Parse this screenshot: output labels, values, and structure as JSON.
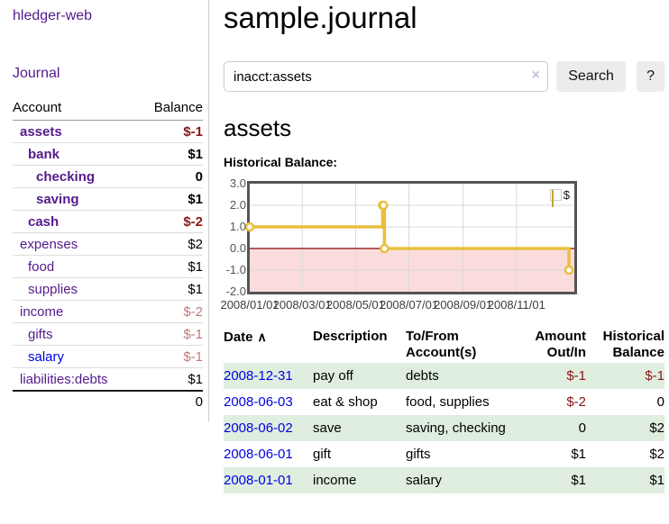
{
  "colors": {
    "link_purple": "#551a8b",
    "link_blue": "#0000e8",
    "negative_dark": "#8b1515",
    "negative_light": "#bd7b7b",
    "row_green": "#dfeedf",
    "row_border": "#dddddd",
    "header_underline": "#999999",
    "divider": "#cccccc",
    "input_border": "#cccccc",
    "button_bg": "#ececec",
    "clear_icon": "#c6c1dc",
    "chart_gold": "#e9bf3e",
    "chart_pink": "#fbdcdc",
    "chart_zero": "#8b0000",
    "chart_border": "#545454",
    "chart_grid": "#d8d8d8",
    "axis_label": "#545454"
  },
  "sidebar": {
    "app_title": "hledger-web",
    "journal_label": "Journal",
    "accounts": {
      "headers": {
        "account": "Account",
        "balance": "Balance"
      },
      "rows": [
        {
          "name": "assets",
          "balance": "$-1",
          "depth": 1,
          "bold": true,
          "negative": true
        },
        {
          "name": "bank",
          "balance": "$1",
          "depth": 2,
          "bold": true
        },
        {
          "name": "checking",
          "balance": "0",
          "depth": 3,
          "bold": true
        },
        {
          "name": "saving",
          "balance": "$1",
          "depth": 3,
          "bold": true
        },
        {
          "name": "cash",
          "balance": "$-2",
          "depth": 2,
          "bold": true,
          "negative": true
        },
        {
          "name": "expenses",
          "balance": "$2",
          "depth": 1
        },
        {
          "name": "food",
          "balance": "$1",
          "depth": 2
        },
        {
          "name": "supplies",
          "balance": "$1",
          "depth": 2
        },
        {
          "name": "income",
          "balance": "$-2",
          "depth": 1,
          "negative": true,
          "light": true
        },
        {
          "name": "gifts",
          "balance": "$-1",
          "depth": 2,
          "negative": true,
          "light": true
        },
        {
          "name": "salary",
          "balance": "$-1",
          "depth": 2,
          "negative": true,
          "light": true,
          "unvisited": true
        },
        {
          "name": "liabilities:debts",
          "balance": "$1",
          "depth": 1
        }
      ],
      "total": "0"
    }
  },
  "header": {
    "title": "sample.journal"
  },
  "search": {
    "query": "inacct:assets",
    "clear_icon": "×",
    "button_label": "Search",
    "help_label": "?"
  },
  "account_page": {
    "heading": "assets"
  },
  "chart_data": {
    "type": "line",
    "steps": true,
    "title": "Historical Balance:",
    "series": [
      {
        "name": "$",
        "points": [
          [
            "2008-01-01",
            1
          ],
          [
            "2008-06-01",
            2
          ],
          [
            "2008-06-02",
            2
          ],
          [
            "2008-06-03",
            0
          ],
          [
            "2008-12-31",
            -1
          ]
        ]
      }
    ],
    "x_range": [
      "2008-01-01",
      "2008-12-31"
    ],
    "x_ticks": [
      {
        "date": "2008-01-01",
        "label": "2008/01/01"
      },
      {
        "date": "2008-03-01",
        "label": "2008/03/01"
      },
      {
        "date": "2008-05-01",
        "label": "2008/05/01"
      },
      {
        "date": "2008-07-01",
        "label": "2008/07/01"
      },
      {
        "date": "2008-09-01",
        "label": "2008/09/01"
      },
      {
        "date": "2008-11-01",
        "label": "2008/11/01"
      }
    ],
    "y_ticks": [
      {
        "value": 3,
        "label": "3.0"
      },
      {
        "value": 2,
        "label": "2.0"
      },
      {
        "value": 1,
        "label": "1.0"
      },
      {
        "value": 0,
        "label": "0.0"
      },
      {
        "value": -1,
        "label": "-1.0"
      },
      {
        "value": -2,
        "label": "-2.0"
      }
    ],
    "ylim": [
      -2,
      3
    ],
    "grid": true,
    "legend_position": "top-right",
    "negative_region_shaded_below": 0
  },
  "register": {
    "headers": [
      {
        "label": "Date",
        "align": "left",
        "sort": "∧"
      },
      {
        "label": "Description",
        "align": "left"
      },
      {
        "label": "To/From Account(s)",
        "align": "left"
      },
      {
        "label": "Amount Out/In",
        "align": "right"
      },
      {
        "label": "Historical Balance",
        "align": "right"
      }
    ],
    "rows": [
      {
        "date": "2008-12-31",
        "description": "pay off",
        "accounts": "debts",
        "amount": "$-1",
        "amount_negative": true,
        "balance": "$-1",
        "balance_negative": true
      },
      {
        "date": "2008-06-03",
        "description": "eat & shop",
        "accounts": "food, supplies",
        "amount": "$-2",
        "amount_negative": true,
        "balance": "0"
      },
      {
        "date": "2008-06-02",
        "description": "save",
        "accounts": "saving, checking",
        "amount": "0",
        "balance": "$2"
      },
      {
        "date": "2008-06-01",
        "description": "gift",
        "accounts": "gifts",
        "amount": "$1",
        "balance": "$2"
      },
      {
        "date": "2008-01-01",
        "description": "income",
        "accounts": "salary",
        "amount": "$1",
        "balance": "$1"
      }
    ]
  }
}
